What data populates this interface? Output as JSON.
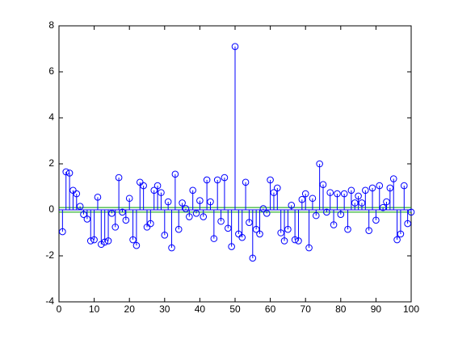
{
  "chart_data": {
    "type": "stem",
    "x": [
      1,
      2,
      3,
      4,
      5,
      6,
      7,
      8,
      9,
      10,
      11,
      12,
      13,
      14,
      15,
      16,
      17,
      18,
      19,
      20,
      21,
      22,
      23,
      24,
      25,
      26,
      27,
      28,
      29,
      30,
      31,
      32,
      33,
      34,
      35,
      36,
      37,
      38,
      39,
      40,
      41,
      42,
      43,
      44,
      45,
      46,
      47,
      48,
      49,
      50,
      51,
      52,
      53,
      54,
      55,
      56,
      57,
      58,
      59,
      60,
      61,
      62,
      63,
      64,
      65,
      66,
      67,
      68,
      69,
      70,
      71,
      72,
      73,
      74,
      75,
      76,
      77,
      78,
      79,
      80,
      81,
      82,
      83,
      84,
      85,
      86,
      87,
      88,
      89,
      90,
      91,
      92,
      93,
      94,
      95,
      96,
      97,
      98,
      99,
      100
    ],
    "series": [
      {
        "color": "#0000ff",
        "values": [
          -0.95,
          1.65,
          1.6,
          0.85,
          0.7,
          0.15,
          -0.2,
          -0.4,
          -1.35,
          -1.3,
          0.55,
          -1.5,
          -1.4,
          -1.35,
          -0.15,
          -0.75,
          1.4,
          -0.1,
          -0.45,
          0.5,
          -1.3,
          -1.55,
          1.2,
          1.05,
          -0.75,
          -0.6,
          0.85,
          1.05,
          0.75,
          -1.1,
          0.35,
          -1.65,
          1.55,
          -0.85,
          0.3,
          0.05,
          -0.3,
          0.85,
          -0.15,
          0.4,
          -0.3,
          1.3,
          0.35,
          -1.25,
          1.3,
          -0.5,
          1.4,
          -0.8,
          -1.6,
          7.1,
          -1.05,
          -1.2,
          1.2,
          -0.55,
          -2.1,
          -0.85,
          -1.05,
          0.05,
          -0.15,
          1.3,
          0.75,
          0.95,
          -1.0,
          -1.35,
          -0.85,
          0.2,
          -1.3,
          -1.35,
          0.45,
          0.7,
          -1.65,
          0.5,
          -0.25,
          2.0,
          1.1,
          -0.1,
          0.75,
          -0.65,
          0.7,
          -0.2,
          0.7,
          -0.85,
          0.85,
          0.3,
          0.6,
          0.3,
          0.85,
          -0.9,
          0.95,
          -0.45,
          1.05,
          0.1,
          0.35,
          0.95,
          1.35,
          -1.3,
          -1.05,
          1.05,
          -0.6,
          -0.1
        ]
      }
    ],
    "hlines": [
      0.1,
      -0.1
    ],
    "hline_color": "#00a000",
    "xlim": [
      0,
      100
    ],
    "xticks": [
      0,
      10,
      20,
      30,
      40,
      50,
      60,
      70,
      80,
      90,
      100
    ],
    "ylim": [
      -4,
      8
    ],
    "yticks": [
      -4,
      -2,
      0,
      2,
      4,
      6,
      8
    ],
    "grid": false
  }
}
